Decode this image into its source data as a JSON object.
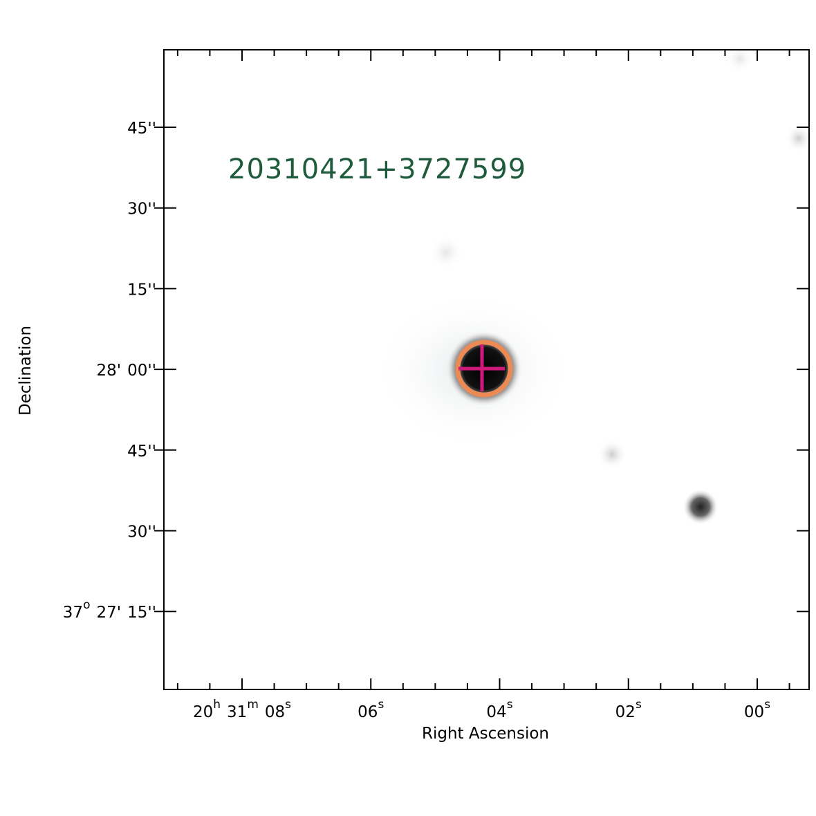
{
  "figure": {
    "label": "20310421+3727599",
    "x_axis": {
      "title": "Right Ascension",
      "ticks": [
        [
          {
            "text": "20",
            "sup": "h"
          },
          {
            "text": "31",
            "sup": "m"
          },
          {
            "text": "08",
            "sup": "s"
          }
        ],
        [
          {
            "text": "06",
            "sup": "s"
          }
        ],
        [
          {
            "text": "04",
            "sup": "s"
          }
        ],
        [
          {
            "text": "02",
            "sup": "s"
          }
        ],
        [
          {
            "text": "00",
            "sup": "s"
          }
        ]
      ]
    },
    "y_axis": {
      "title": "Declination",
      "ticks": [
        [
          {
            "text": "45''"
          }
        ],
        [
          {
            "text": "30''"
          }
        ],
        [
          {
            "text": "15''"
          }
        ],
        [
          {
            "text": "28'"
          },
          {
            "text": "00''"
          }
        ],
        [
          {
            "text": "45''"
          }
        ],
        [
          {
            "text": "30''"
          }
        ],
        [
          {
            "text": "37",
            "sup": "o"
          },
          {
            "text": "27'"
          },
          {
            "text": "15''"
          }
        ]
      ]
    }
  }
}
